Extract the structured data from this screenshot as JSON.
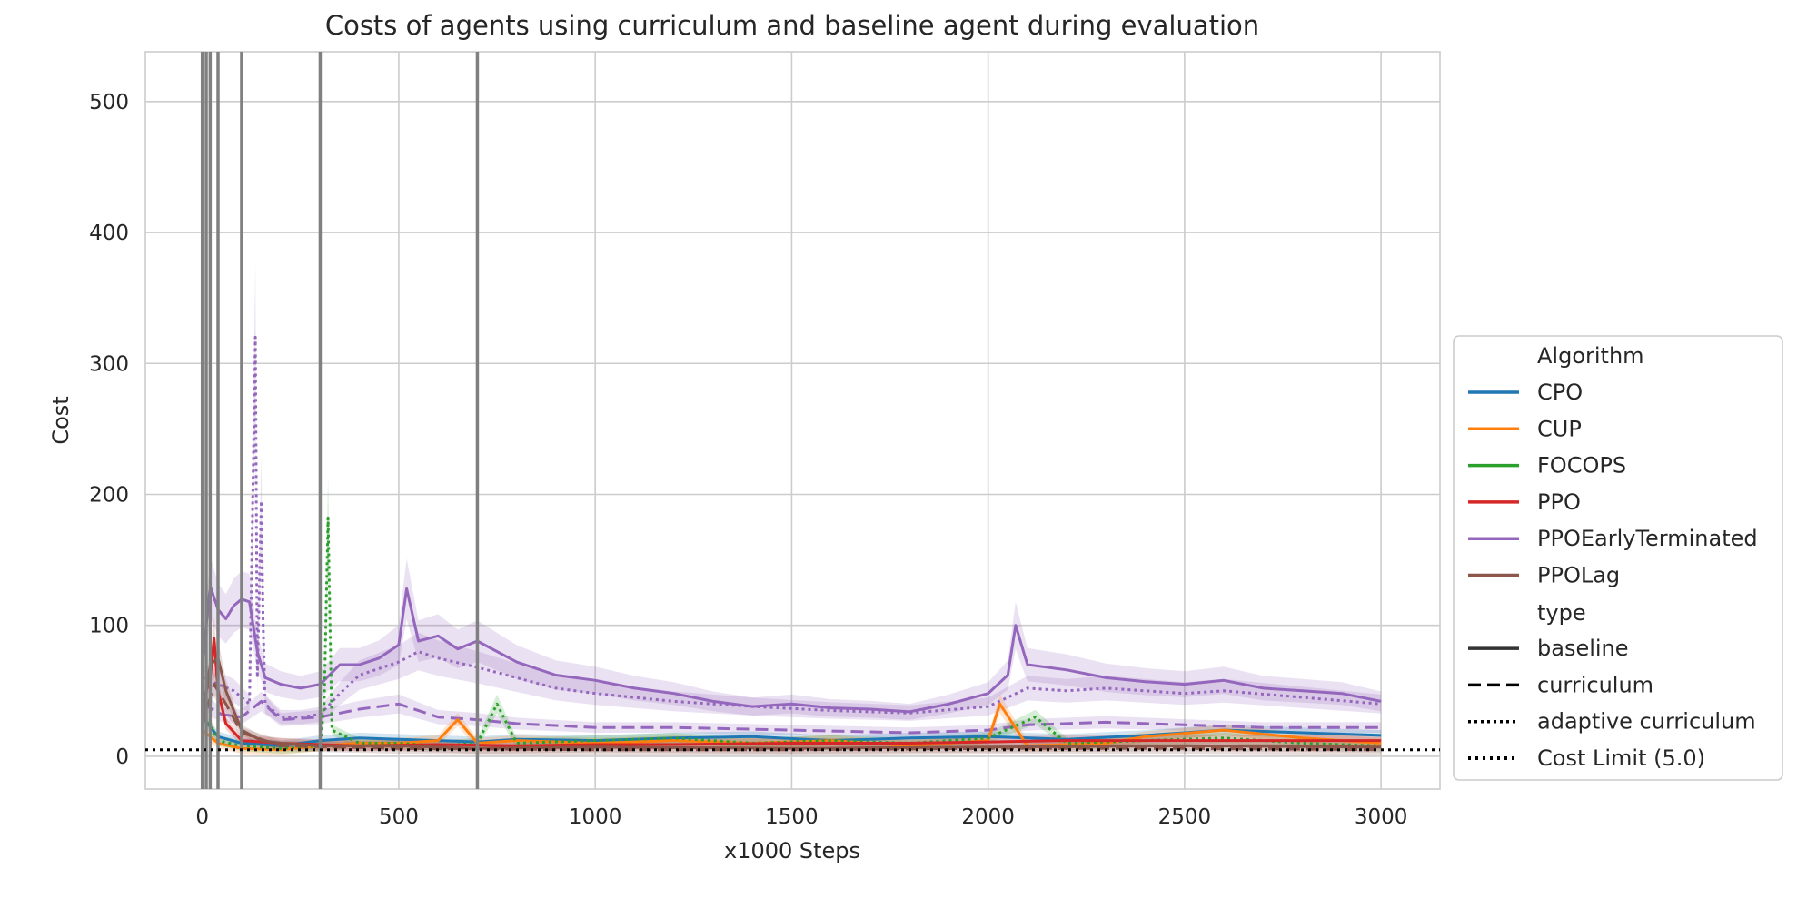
{
  "chart_data": {
    "type": "line",
    "title": "Costs of agents using curriculum and baseline agent during evaluation",
    "xlabel": "x1000 Steps",
    "ylabel": "Cost",
    "xlim": [
      -145,
      3150
    ],
    "ylim": [
      -25,
      538
    ],
    "xticks": [
      0,
      500,
      1000,
      1500,
      2000,
      2500,
      3000
    ],
    "yticks": [
      0,
      100,
      200,
      300,
      400,
      500
    ],
    "grid": true,
    "legend_placement": "center-right outside",
    "legend": {
      "algorithm_title": "Algorithm",
      "type_title": "type",
      "algorithms": [
        {
          "label": "CPO",
          "color": "#1f77b4"
        },
        {
          "label": "CUP",
          "color": "#ff7f0e"
        },
        {
          "label": "FOCOPS",
          "color": "#2ca02c"
        },
        {
          "label": "PPO",
          "color": "#d62728"
        },
        {
          "label": "PPOEarlyTerminated",
          "color": "#9467bd"
        },
        {
          "label": "PPOLag",
          "color": "#8c564b"
        }
      ],
      "types": [
        {
          "label": "baseline",
          "style": "solid"
        },
        {
          "label": "curriculum",
          "style": "dashed"
        },
        {
          "label": "adaptive curriculum",
          "style": "dotted"
        },
        {
          "label": "Cost Limit (5.0)",
          "style": "dotted-bold"
        }
      ]
    },
    "cost_limit": 5.0,
    "curriculum_boundaries": [
      0,
      10,
      20,
      40,
      100,
      300,
      700
    ],
    "series": [
      {
        "algorithm": "PPOEarlyTerminated",
        "type": "baseline",
        "x": [
          0,
          20,
          40,
          60,
          80,
          100,
          120,
          140,
          160,
          200,
          250,
          300,
          350,
          400,
          450,
          500,
          520,
          550,
          600,
          650,
          700,
          800,
          900,
          1000,
          1100,
          1200,
          1300,
          1400,
          1500,
          1600,
          1700,
          1800,
          1900,
          2000,
          2050,
          2070,
          2100,
          2200,
          2300,
          2400,
          2500,
          2600,
          2700,
          2800,
          2900,
          3000
        ],
        "y": [
          70,
          130,
          112,
          105,
          115,
          120,
          118,
          80,
          60,
          55,
          52,
          55,
          70,
          70,
          75,
          85,
          128,
          88,
          92,
          82,
          88,
          72,
          62,
          58,
          52,
          48,
          42,
          38,
          40,
          37,
          36,
          34,
          40,
          48,
          62,
          100,
          70,
          66,
          60,
          57,
          55,
          58,
          52,
          50,
          48,
          42
        ]
      },
      {
        "algorithm": "PPOEarlyTerminated",
        "type": "curriculum",
        "x": [
          0,
          50,
          100,
          150,
          200,
          300,
          400,
          500,
          600,
          700,
          800,
          1000,
          1200,
          1500,
          1800,
          2000,
          2100,
          2300,
          2500,
          2700,
          3000
        ],
        "y": [
          40,
          32,
          30,
          42,
          28,
          30,
          36,
          40,
          30,
          28,
          25,
          22,
          22,
          20,
          18,
          20,
          24,
          26,
          24,
          22,
          22
        ]
      },
      {
        "algorithm": "PPOEarlyTerminated",
        "type": "adaptive curriculum",
        "x": [
          0,
          40,
          80,
          120,
          135,
          140,
          150,
          155,
          160,
          180,
          200,
          250,
          300,
          350,
          400,
          500,
          550,
          600,
          700,
          800,
          900,
          1000,
          1200,
          1400,
          1600,
          1800,
          2000,
          2100,
          2200,
          2300,
          2500,
          2600,
          2800,
          3000
        ],
        "y": [
          60,
          55,
          50,
          40,
          320,
          60,
          195,
          100,
          40,
          35,
          30,
          30,
          32,
          48,
          62,
          72,
          80,
          75,
          68,
          60,
          52,
          48,
          42,
          38,
          35,
          33,
          38,
          52,
          50,
          52,
          48,
          50,
          45,
          40
        ]
      },
      {
        "algorithm": "CPO",
        "type": "baseline",
        "x": [
          0,
          40,
          100,
          200,
          300,
          400,
          500,
          600,
          700,
          800,
          1000,
          1200,
          1400,
          1600,
          1800,
          2000,
          2200,
          2400,
          2600,
          2800,
          3000
        ],
        "y": [
          30,
          15,
          10,
          8,
          12,
          14,
          13,
          12,
          11,
          13,
          12,
          14,
          15,
          12,
          14,
          15,
          13,
          16,
          20,
          18,
          16
        ]
      },
      {
        "algorithm": "CUP",
        "type": "baseline",
        "x": [
          0,
          40,
          100,
          200,
          300,
          400,
          500,
          600,
          650,
          700,
          800,
          1000,
          1200,
          1400,
          1600,
          1800,
          2000,
          2030,
          2100,
          2300,
          2400,
          2600,
          2800,
          3000
        ],
        "y": [
          20,
          10,
          6,
          5,
          8,
          10,
          10,
          12,
          28,
          10,
          12,
          10,
          12,
          10,
          12,
          8,
          12,
          40,
          8,
          10,
          15,
          20,
          14,
          10
        ]
      },
      {
        "algorithm": "FOCOPS",
        "type": "adaptive curriculum",
        "x": [
          0,
          40,
          100,
          200,
          300,
          310,
          320,
          330,
          400,
          500,
          600,
          700,
          750,
          800,
          1000,
          1200,
          1400,
          1600,
          1800,
          2000,
          2120,
          2200,
          2400,
          2600,
          2800,
          3000
        ],
        "y": [
          35,
          12,
          8,
          6,
          8,
          40,
          182,
          20,
          10,
          10,
          8,
          10,
          40,
          10,
          12,
          14,
          10,
          12,
          10,
          14,
          30,
          10,
          12,
          14,
          10,
          8
        ]
      },
      {
        "algorithm": "PPO",
        "type": "baseline",
        "x": [
          0,
          20,
          30,
          40,
          60,
          100,
          200,
          400,
          600,
          800,
          1000,
          1200,
          1500,
          1800,
          2000,
          2200,
          2400,
          2600,
          2800,
          3000
        ],
        "y": [
          40,
          60,
          90,
          50,
          25,
          12,
          10,
          8,
          9,
          8,
          9,
          9,
          10,
          10,
          11,
          12,
          12,
          12,
          12,
          12
        ]
      },
      {
        "algorithm": "PPOLag",
        "type": "baseline",
        "x": [
          0,
          20,
          40,
          60,
          80,
          100,
          150,
          200,
          300,
          500,
          700,
          1000,
          1500,
          2000,
          2500,
          3000
        ],
        "y": [
          30,
          70,
          75,
          50,
          35,
          20,
          12,
          10,
          8,
          8,
          6,
          7,
          6,
          7,
          8,
          7
        ]
      },
      {
        "algorithm": "PPOLag",
        "type": "curriculum",
        "x": [
          0,
          30,
          60,
          100,
          200,
          500,
          1000,
          1500,
          2000,
          2500,
          3000
        ],
        "y": [
          25,
          55,
          40,
          18,
          8,
          6,
          5,
          5,
          6,
          6,
          5
        ]
      }
    ]
  }
}
